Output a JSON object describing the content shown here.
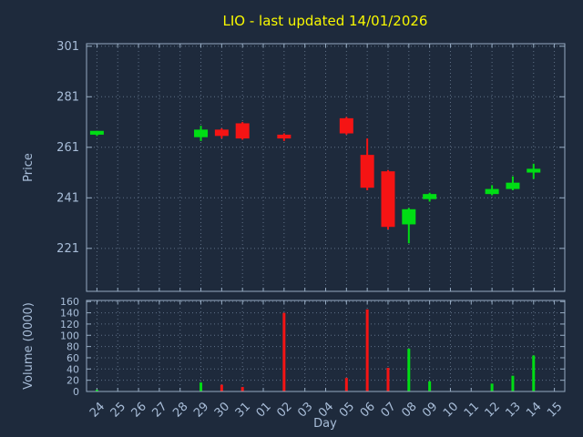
{
  "title": "LIO - last updated 14/01/2026",
  "chart_data": {
    "type": "candlestick",
    "title": "LIO - last updated 14/01/2026",
    "xlabel": "Day",
    "grid": true,
    "price_axis": {
      "label": "Price",
      "ticks": [
        221,
        241,
        261,
        281,
        301
      ],
      "range": [
        204,
        302
      ]
    },
    "volume_axis": {
      "label": "Volume (0000)",
      "ticks": [
        0,
        20,
        40,
        60,
        80,
        100,
        120,
        140,
        160
      ],
      "range": [
        0,
        162
      ]
    },
    "x_ticks": [
      "24",
      "25",
      "26",
      "27",
      "28",
      "29",
      "30",
      "31",
      "01",
      "02",
      "03",
      "04",
      "05",
      "06",
      "07",
      "08",
      "09",
      "10",
      "11",
      "12",
      "13",
      "14",
      "15"
    ],
    "colors": {
      "background": "#1e2a3c",
      "up": "#00dd14",
      "down": "#f51414",
      "grid": "#5f7086",
      "axis": "#96abc2",
      "tick_text": "#a8bdd8",
      "title": "#f8f800"
    },
    "candles": [
      {
        "day": "24",
        "open": 266.0,
        "high": 267.5,
        "low": 265.5,
        "close": 267.5,
        "volume": 3
      },
      {
        "day": "29",
        "open": 265.0,
        "high": 269.5,
        "low": 263.5,
        "close": 268.0,
        "volume": 16
      },
      {
        "day": "30",
        "open": 268.0,
        "high": 268.5,
        "low": 264.5,
        "close": 265.5,
        "volume": 12
      },
      {
        "day": "31",
        "open": 270.5,
        "high": 271.0,
        "low": 264.0,
        "close": 264.5,
        "volume": 8
      },
      {
        "day": "02",
        "open": 266.0,
        "high": 266.5,
        "low": 263.5,
        "close": 264.5,
        "volume": 140
      },
      {
        "day": "05",
        "open": 272.5,
        "high": 273.0,
        "low": 266.0,
        "close": 266.5,
        "volume": 24
      },
      {
        "day": "06",
        "open": 258.0,
        "high": 264.5,
        "low": 244.0,
        "close": 245.0,
        "volume": 146
      },
      {
        "day": "07",
        "open": 251.5,
        "high": 252.0,
        "low": 228.5,
        "close": 229.5,
        "volume": 42
      },
      {
        "day": "08",
        "open": 230.5,
        "high": 237.0,
        "low": 223.0,
        "close": 236.5,
        "volume": 76
      },
      {
        "day": "09",
        "open": 240.5,
        "high": 243.0,
        "low": 239.5,
        "close": 242.5,
        "volume": 18
      },
      {
        "day": "12",
        "open": 242.5,
        "high": 246.0,
        "low": 242.0,
        "close": 244.5,
        "volume": 14
      },
      {
        "day": "13",
        "open": 244.5,
        "high": 249.5,
        "low": 244.0,
        "close": 247.0,
        "volume": 28
      },
      {
        "day": "14",
        "open": 251.0,
        "high": 254.5,
        "low": 248.5,
        "close": 252.5,
        "volume": 64
      }
    ]
  }
}
